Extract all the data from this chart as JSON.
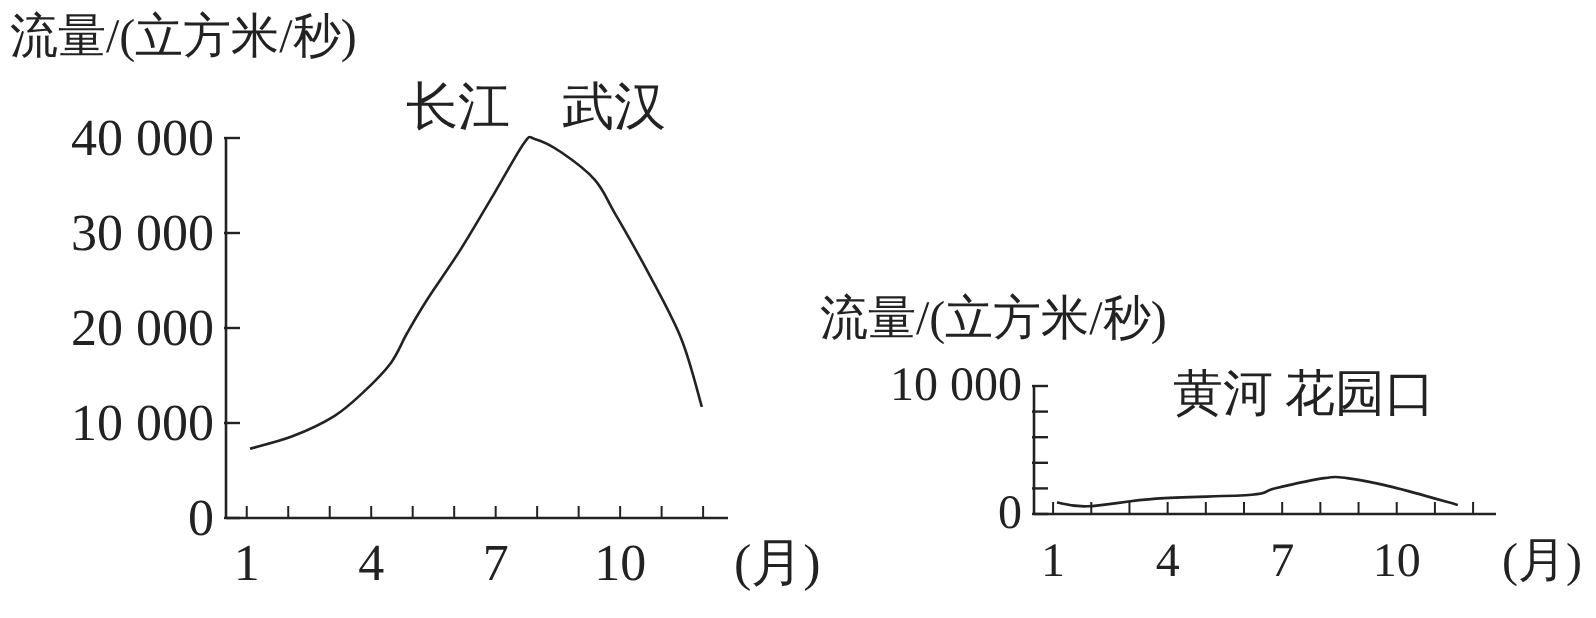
{
  "chart_data": [
    {
      "type": "line",
      "title": "长江　武汉",
      "ylabel": "流量/(立方米/秒)",
      "xlabel": "(月)",
      "xlim": [
        0.5,
        12.6
      ],
      "ylim": [
        0,
        40000
      ],
      "xticks": [
        1,
        {
          "value": 2,
          "label": null
        },
        {
          "value": 3,
          "label": null
        },
        4,
        {
          "value": 5,
          "label": null
        },
        {
          "value": 6,
          "label": null
        },
        7,
        {
          "value": 8,
          "label": null
        },
        {
          "value": 9,
          "label": null
        },
        10,
        {
          "value": 11,
          "label": null
        },
        {
          "value": 12,
          "label": null
        }
      ],
      "yticks": [
        0,
        {
          "value": 10000,
          "label": "10 000"
        },
        {
          "value": 20000,
          "label": "20 000"
        },
        {
          "value": 30000,
          "label": "30 000"
        },
        {
          "value": 40000,
          "label": "40 000"
        }
      ],
      "series": [
        {
          "color": "#222222",
          "x": [
            1.08,
            2.1,
            3.1,
            3.8,
            4.47,
            4.87,
            5.35,
            6.16,
            6.97,
            7.69,
            7.94,
            8.58,
            9.39,
            9.87,
            10.68,
            11.48,
            11.97
          ],
          "values": [
            7300,
            8600,
            10700,
            13200,
            16300,
            19500,
            23000,
            28300,
            34200,
            39500,
            39900,
            38500,
            35600,
            32100,
            25800,
            18800,
            11700
          ]
        }
      ]
    },
    {
      "type": "line",
      "title": "黄河  花园口",
      "ylabel": "流量/(立方米/秒)",
      "xlabel": "(月)",
      "xlim": [
        0.5,
        12.6
      ],
      "ylim": [
        0,
        10000
      ],
      "xticks": [
        1,
        {
          "value": 2,
          "label": null
        },
        {
          "value": 3,
          "label": null
        },
        4,
        {
          "value": 5,
          "label": null
        },
        {
          "value": 6,
          "label": null
        },
        7,
        {
          "value": 8,
          "label": null
        },
        {
          "value": 9,
          "label": null
        },
        10,
        {
          "value": 11,
          "label": null
        },
        {
          "value": 12,
          "label": null
        }
      ],
      "yticks": [
        0,
        {
          "value": 2000,
          "label": null
        },
        {
          "value": 4000,
          "label": null
        },
        {
          "value": 6000,
          "label": null
        },
        {
          "value": 8000,
          "label": null
        },
        {
          "value": 10000,
          "label": "10 000"
        }
      ],
      "series": [
        {
          "color": "#222222",
          "x": [
            1.1,
            1.9,
            3.7,
            6.2,
            6.8,
            8.1,
            8.7,
            9.9,
            11.6
          ],
          "values": [
            900,
            600,
            1200,
            1500,
            2000,
            2800,
            2800,
            2100,
            700
          ]
        }
      ]
    }
  ]
}
